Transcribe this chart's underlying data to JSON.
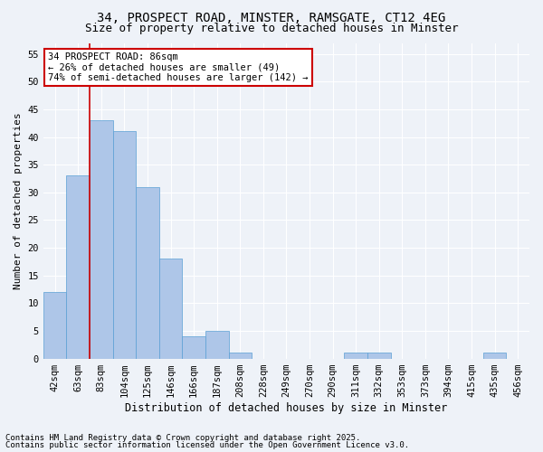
{
  "title_line1": "34, PROSPECT ROAD, MINSTER, RAMSGATE, CT12 4EG",
  "title_line2": "Size of property relative to detached houses in Minster",
  "xlabel": "Distribution of detached houses by size in Minster",
  "ylabel": "Number of detached properties",
  "categories": [
    "42sqm",
    "63sqm",
    "83sqm",
    "104sqm",
    "125sqm",
    "146sqm",
    "166sqm",
    "187sqm",
    "208sqm",
    "228sqm",
    "249sqm",
    "270sqm",
    "290sqm",
    "311sqm",
    "332sqm",
    "353sqm",
    "373sqm",
    "394sqm",
    "415sqm",
    "435sqm",
    "456sqm"
  ],
  "values": [
    12,
    33,
    43,
    41,
    31,
    18,
    4,
    5,
    1,
    0,
    0,
    0,
    0,
    1,
    1,
    0,
    0,
    0,
    0,
    1,
    0
  ],
  "bar_color": "#aec6e8",
  "bar_edge_color": "#5a9fd4",
  "red_line_index": 2,
  "annotation_text": "34 PROSPECT ROAD: 86sqm\n← 26% of detached houses are smaller (49)\n74% of semi-detached houses are larger (142) →",
  "annotation_box_color": "#ffffff",
  "annotation_border_color": "#cc0000",
  "background_color": "#eef2f8",
  "grid_color": "#ffffff",
  "yticks": [
    0,
    5,
    10,
    15,
    20,
    25,
    30,
    35,
    40,
    45,
    50,
    55
  ],
  "ylim": [
    0,
    57
  ],
  "footer_line1": "Contains HM Land Registry data © Crown copyright and database right 2025.",
  "footer_line2": "Contains public sector information licensed under the Open Government Licence v3.0.",
  "red_line_color": "#cc0000",
  "font_size_title1": 10,
  "font_size_title2": 9,
  "font_size_annotation": 7.5,
  "font_size_ticks": 7.5,
  "font_size_ylabel": 8,
  "font_size_xlabel": 8.5,
  "font_size_footer": 6.5
}
